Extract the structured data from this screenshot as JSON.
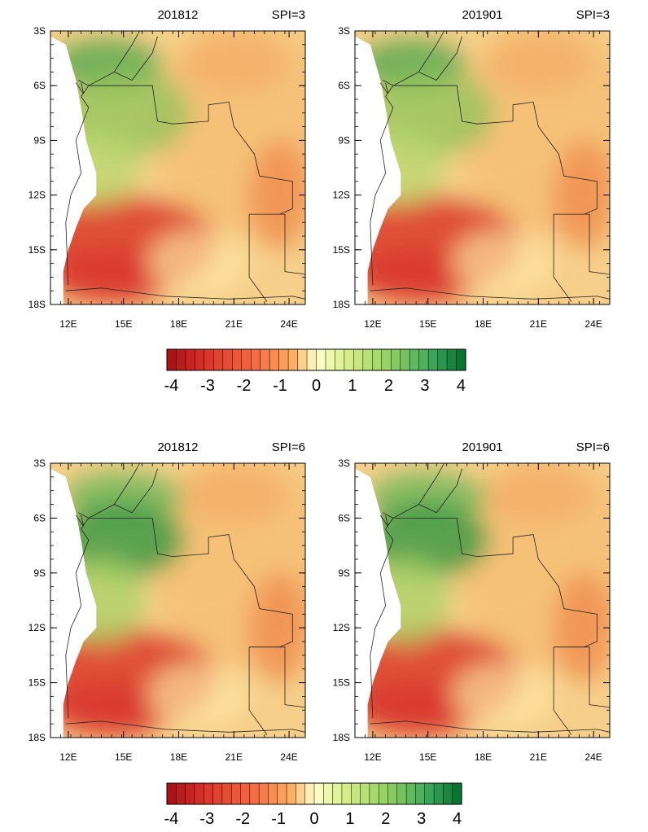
{
  "figure": {
    "panels": [
      {
        "date": "201812",
        "spi_label": "SPI=3"
      },
      {
        "date": "201901",
        "spi_label": "SPI=3"
      },
      {
        "date": "201812",
        "spi_label": "SPI=6"
      },
      {
        "date": "201901",
        "spi_label": "SPI=6"
      }
    ],
    "lat_ticks": [
      "3S",
      "6S",
      "9S",
      "12S",
      "15S",
      "18S"
    ],
    "lon_ticks": [
      "12E",
      "15E",
      "18E",
      "21E",
      "24E"
    ],
    "colorbar": {
      "labels": [
        "-4",
        "-3",
        "-2",
        "-1",
        "0",
        "1",
        "2",
        "3",
        "4"
      ],
      "min": -4,
      "max": 4,
      "step": 0.25,
      "low_color": "#a50f15",
      "mid_color": "#ffffcc",
      "high_color": "#006d2c"
    }
  }
}
